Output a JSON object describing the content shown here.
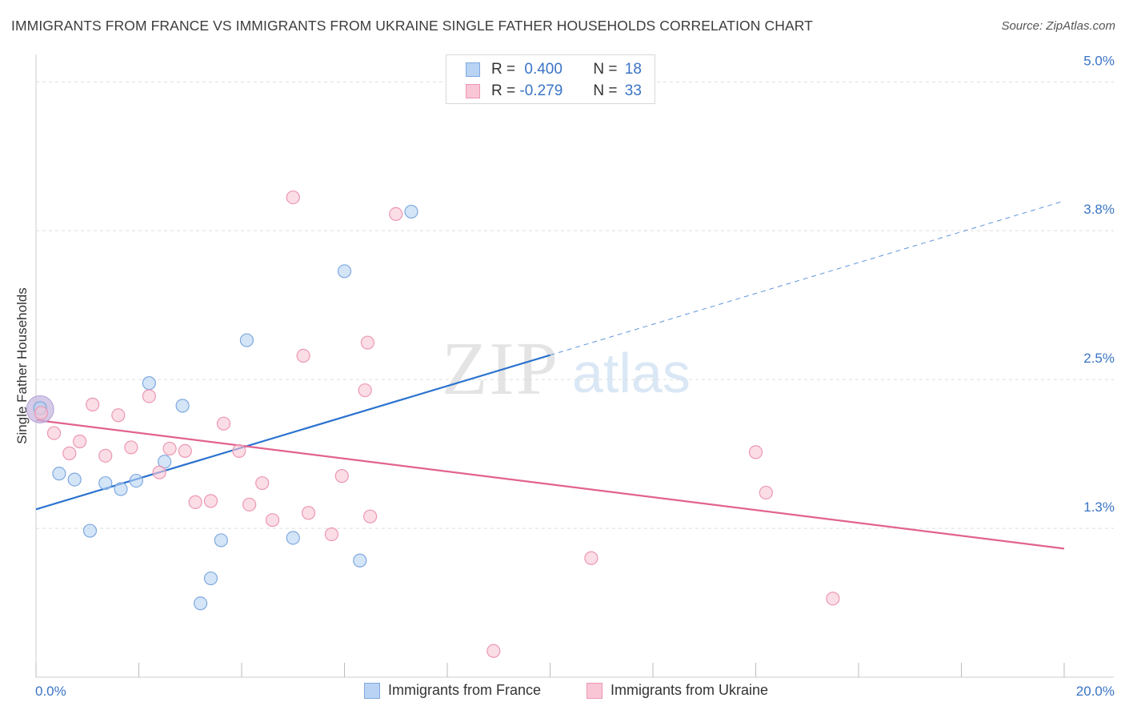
{
  "title": "IMMIGRANTS FROM FRANCE VS IMMIGRANTS FROM UKRAINE SINGLE FATHER HOUSEHOLDS CORRELATION CHART",
  "source": "Source: ZipAtlas.com",
  "watermark": {
    "zip": "ZIP",
    "atlas": "atlas"
  },
  "legend": {
    "france": {
      "r_label": "R =",
      "r_value": "0.400",
      "n_label": "N =",
      "n_value": "18"
    },
    "ukraine": {
      "r_label": "R =",
      "r_value": "-0.279",
      "n_label": "N =",
      "n_value": "33"
    }
  },
  "colors": {
    "france_fill": "#b8d3f4",
    "france_stroke": "#7ea9df",
    "france_line": "#2a72cf",
    "ukraine_fill": "#f9c6d6",
    "ukraine_stroke": "#ec97b3",
    "ukraine_line": "#e0628f",
    "tick_text": "#3a74c4",
    "grid": "#dddddd"
  },
  "chart_data": {
    "type": "scatter",
    "ylabel": "Single Father Households",
    "xlim": [
      0,
      20
    ],
    "ylim": [
      0.0,
      5.15
    ],
    "x_ticks": [
      "0.0%",
      "20.0%"
    ],
    "y_ticks": [
      {
        "value": 1.25,
        "label": "1.3%"
      },
      {
        "value": 2.5,
        "label": "2.5%"
      },
      {
        "value": 3.75,
        "label": "3.8%"
      },
      {
        "value": 5.0,
        "label": "5.0%"
      }
    ],
    "series": [
      {
        "name": "Immigrants from France",
        "points": [
          [
            0.08,
            2.26
          ],
          [
            0.45,
            1.71
          ],
          [
            0.75,
            1.66
          ],
          [
            1.05,
            1.23
          ],
          [
            1.35,
            1.63
          ],
          [
            1.65,
            1.58
          ],
          [
            1.95,
            1.65
          ],
          [
            2.2,
            2.47
          ],
          [
            2.5,
            1.81
          ],
          [
            2.85,
            2.28
          ],
          [
            3.2,
            0.62
          ],
          [
            3.4,
            0.83
          ],
          [
            3.6,
            1.15
          ],
          [
            4.1,
            2.83
          ],
          [
            5.0,
            1.17
          ],
          [
            6.0,
            3.41
          ],
          [
            6.3,
            0.98
          ],
          [
            7.3,
            3.91
          ]
        ],
        "trend": {
          "x0": 0,
          "y0": 1.41,
          "x1": 20,
          "y1": 4.0,
          "solid_until": 10
        }
      },
      {
        "name": "Immigrants from Ukraine",
        "points": [
          [
            0.35,
            2.05
          ],
          [
            0.65,
            1.88
          ],
          [
            0.85,
            1.98
          ],
          [
            1.1,
            2.29
          ],
          [
            1.35,
            1.86
          ],
          [
            1.6,
            2.2
          ],
          [
            1.85,
            1.93
          ],
          [
            2.2,
            2.36
          ],
          [
            2.4,
            1.72
          ],
          [
            2.6,
            1.92
          ],
          [
            2.9,
            1.9
          ],
          [
            3.1,
            1.47
          ],
          [
            3.4,
            1.48
          ],
          [
            3.65,
            2.13
          ],
          [
            3.95,
            1.9
          ],
          [
            4.15,
            1.45
          ],
          [
            4.4,
            1.63
          ],
          [
            4.6,
            1.32
          ],
          [
            5.0,
            4.03
          ],
          [
            5.2,
            2.7
          ],
          [
            5.3,
            1.38
          ],
          [
            5.75,
            1.2
          ],
          [
            5.95,
            1.69
          ],
          [
            6.45,
            2.81
          ],
          [
            6.4,
            2.41
          ],
          [
            6.5,
            1.35
          ],
          [
            7.0,
            3.89
          ],
          [
            8.9,
            0.22
          ],
          [
            10.8,
            1.0
          ],
          [
            14.0,
            1.89
          ],
          [
            14.2,
            1.55
          ],
          [
            15.5,
            0.66
          ],
          [
            0.1,
            2.22
          ]
        ],
        "trend": {
          "x0": 0,
          "y0": 2.16,
          "x1": 20,
          "y1": 1.08
        }
      }
    ]
  }
}
